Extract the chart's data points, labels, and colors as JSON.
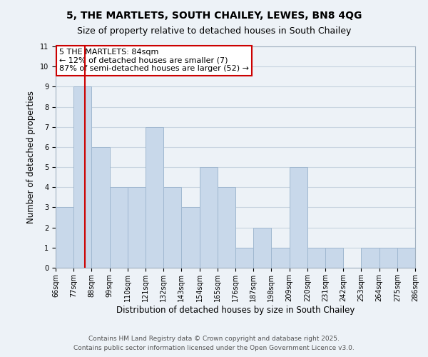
{
  "title": "5, THE MARTLETS, SOUTH CHAILEY, LEWES, BN8 4QG",
  "subtitle": "Size of property relative to detached houses in South Chailey",
  "xlabel": "Distribution of detached houses by size in South Chailey",
  "ylabel": "Number of detached properties",
  "bin_edges": [
    66,
    77,
    88,
    99,
    110,
    121,
    132,
    143,
    154,
    165,
    176,
    187,
    198,
    209,
    220,
    231,
    242,
    253,
    264,
    275,
    286
  ],
  "bar_heights": [
    3,
    9,
    6,
    4,
    4,
    7,
    4,
    3,
    5,
    4,
    1,
    2,
    1,
    5,
    1,
    1,
    0,
    1,
    1,
    1
  ],
  "bar_color": "#c8d8ea",
  "bar_edgecolor": "#a0b8d0",
  "grid_color": "#c8d4e0",
  "bg_color": "#edf2f7",
  "red_line_x": 84,
  "annotation_title": "5 THE MARTLETS: 84sqm",
  "annotation_line1": "← 12% of detached houses are smaller (7)",
  "annotation_line2": "87% of semi-detached houses are larger (52) →",
  "annotation_box_color": "#ffffff",
  "annotation_border_color": "#cc0000",
  "red_line_color": "#cc0000",
  "ylim": [
    0,
    11
  ],
  "yticks": [
    0,
    1,
    2,
    3,
    4,
    5,
    6,
    7,
    8,
    9,
    10,
    11
  ],
  "tick_labels": [
    "66sqm",
    "77sqm",
    "88sqm",
    "99sqm",
    "110sqm",
    "121sqm",
    "132sqm",
    "143sqm",
    "154sqm",
    "165sqm",
    "176sqm",
    "187sqm",
    "198sqm",
    "209sqm",
    "220sqm",
    "231sqm",
    "242sqm",
    "253sqm",
    "264sqm",
    "275sqm",
    "286sqm"
  ],
  "footer1": "Contains HM Land Registry data © Crown copyright and database right 2025.",
  "footer2": "Contains public sector information licensed under the Open Government Licence v3.0.",
  "title_fontsize": 10,
  "subtitle_fontsize": 9,
  "axis_label_fontsize": 8.5,
  "tick_fontsize": 7,
  "annotation_fontsize": 8,
  "footer_fontsize": 6.5
}
